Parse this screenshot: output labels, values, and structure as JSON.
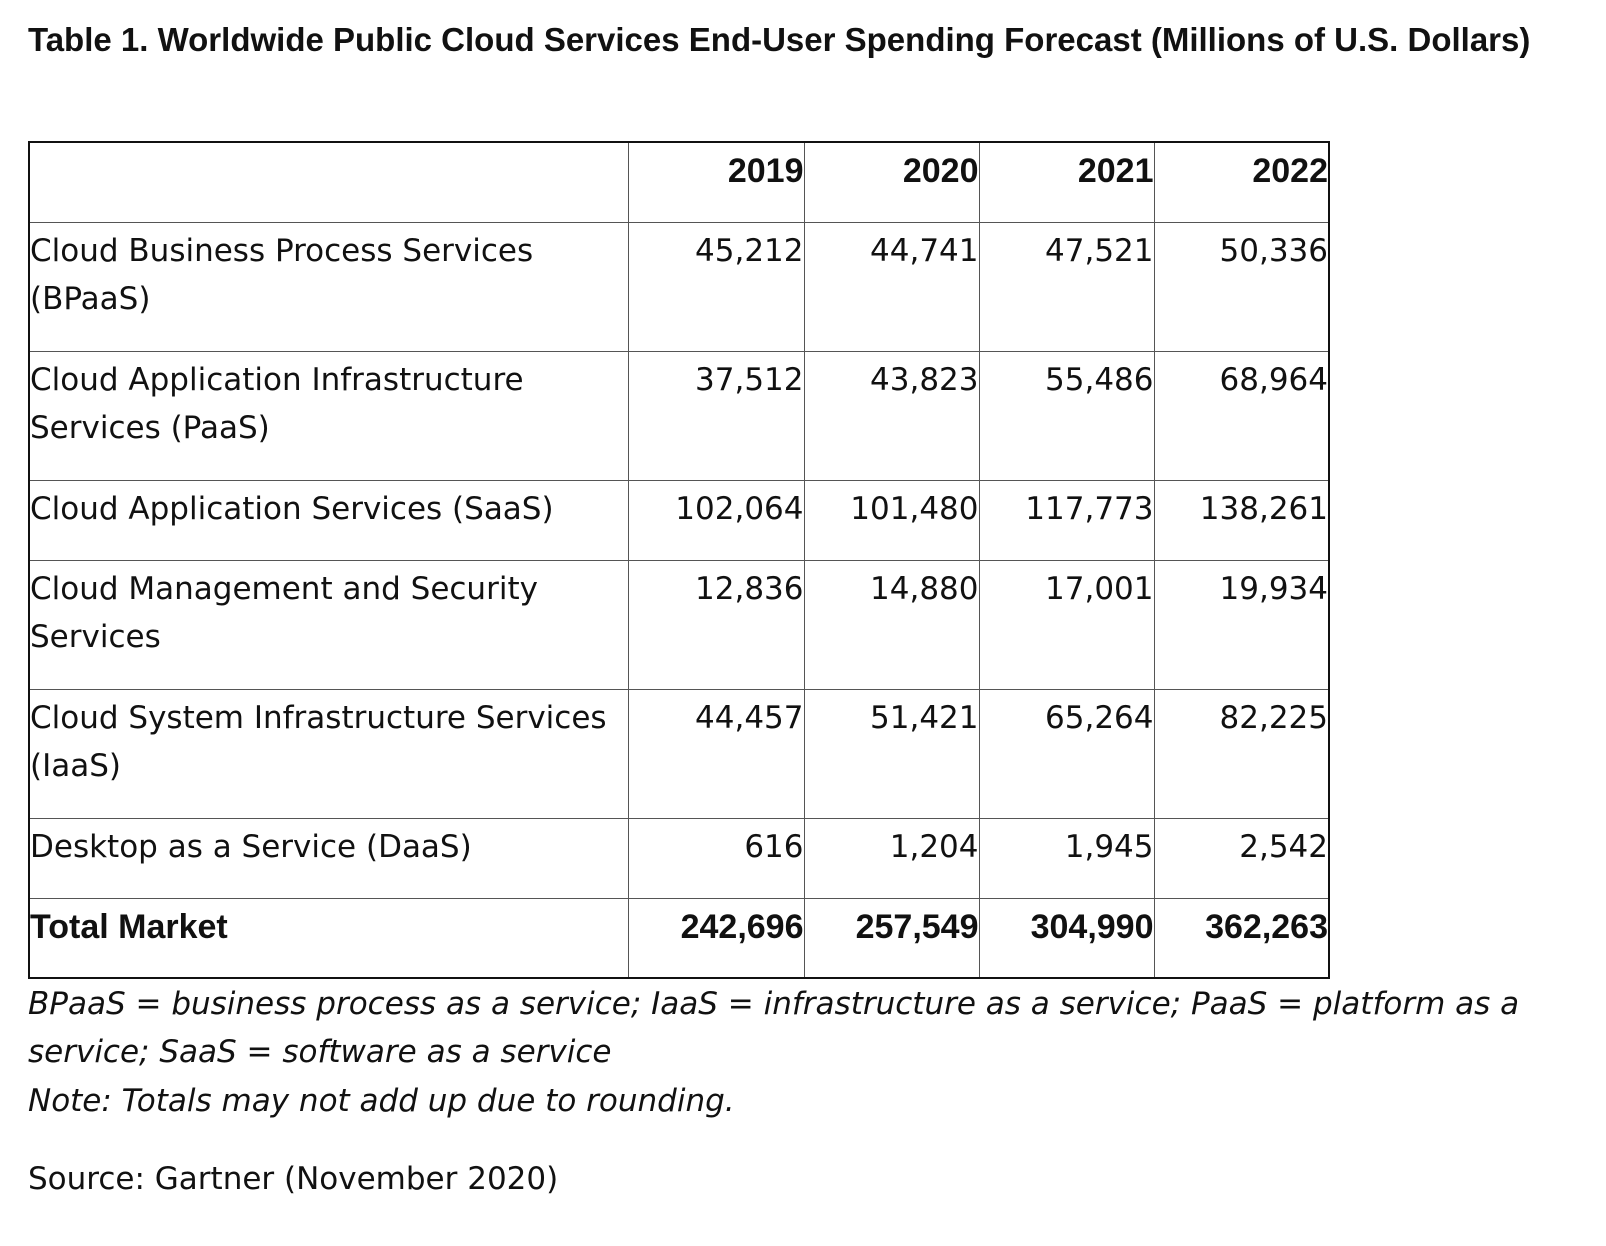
{
  "title": "Table 1. Worldwide Public Cloud Services End-User Spending Forecast (Millions of U.S. Dollars)",
  "table": {
    "corner": "",
    "years": [
      "2019",
      "2020",
      "2021",
      "2022"
    ],
    "rows": [
      {
        "label": "Cloud Business Process Services (BPaaS)",
        "values": [
          "45,212",
          "44,741",
          "47,521",
          "50,336"
        ]
      },
      {
        "label": "Cloud Application Infrastructure Services (PaaS)",
        "values": [
          "37,512",
          "43,823",
          "55,486",
          "68,964"
        ]
      },
      {
        "label": "Cloud Application Services (SaaS)",
        "values": [
          "102,064",
          "101,480",
          "117,773",
          "138,261"
        ]
      },
      {
        "label": "Cloud Management and Security Services",
        "values": [
          "12,836",
          "14,880",
          "17,001",
          "19,934"
        ]
      },
      {
        "label": "Cloud System Infrastructure Services (IaaS)",
        "values": [
          "44,457",
          "51,421",
          "65,264",
          "82,225"
        ]
      },
      {
        "label": "Desktop as a Service (DaaS)",
        "values": [
          "616",
          "1,204",
          "1,945",
          "2,542"
        ]
      }
    ],
    "total": {
      "label": "Total Market",
      "values": [
        "242,696",
        "257,549",
        "304,990",
        "362,263"
      ]
    }
  },
  "footnote": "BPaaS = business process as a service; IaaS = infrastructure as a service; PaaS = platform as a service; SaaS = software as a service",
  "note": "Note: Totals may not add up due to rounding.",
  "source": "Source: Gartner (November 2020)"
}
